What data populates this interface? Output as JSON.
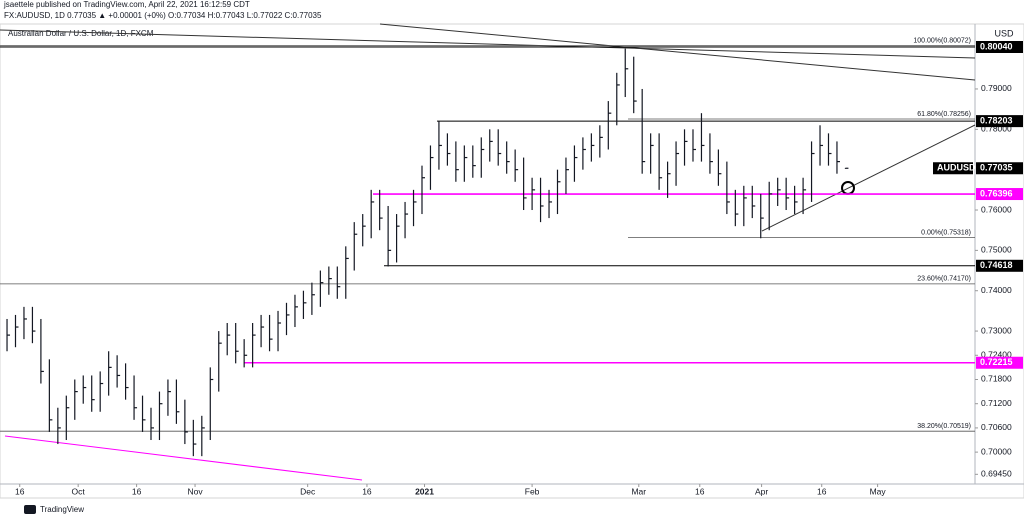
{
  "header": {
    "line1": "jsaettele published on TradingView.com, April 22, 2021 16:12:59 CDT",
    "line2": "FX:AUDUSD, 1D 0.77035 ▲ +0.00001 (+0%) O:0.77034 H:0.77043 L:0.77022 C:0.77035"
  },
  "footer": {
    "brand": "TradingView"
  },
  "chart_data": {
    "type": "hlc",
    "title": "Australian Dollar / U.S. Dollar, 1D, FXCM",
    "currency": "USD",
    "color": "#131722",
    "xlim": [
      -0.83,
      114.3
    ],
    "ylim": [
      0.6921,
      0.8061
    ],
    "xticks": [
      {
        "value": 1.5,
        "label": "16"
      },
      {
        "value": 8.4,
        "label": "Oct"
      },
      {
        "value": 15.3,
        "label": "16"
      },
      {
        "value": 22.2,
        "label": "Nov"
      },
      {
        "value": 35.5,
        "label": "Dec"
      },
      {
        "value": 42.5,
        "label": "16"
      },
      {
        "value": 49.3,
        "label": "2021"
      },
      {
        "value": 62,
        "label": "Feb"
      },
      {
        "value": 74.6,
        "label": "Mar"
      },
      {
        "value": 81.8,
        "label": "16"
      },
      {
        "value": 89.1,
        "label": "Apr"
      },
      {
        "value": 96.2,
        "label": "16"
      },
      {
        "value": 102.8,
        "label": "May"
      }
    ],
    "yticks": [
      {
        "value": 0.6945,
        "label": "0.69450"
      },
      {
        "value": 0.7,
        "label": "0.70000"
      },
      {
        "value": 0.706,
        "label": "0.70600"
      },
      {
        "value": 0.712,
        "label": "0.71200"
      },
      {
        "value": 0.718,
        "label": "0.71800"
      },
      {
        "value": 0.724,
        "label": "0.72400"
      },
      {
        "value": 0.73,
        "label": "0.73000"
      },
      {
        "value": 0.74,
        "label": "0.74000"
      },
      {
        "value": 0.75,
        "label": "0.75000"
      },
      {
        "value": 0.76,
        "label": "0.76000"
      },
      {
        "value": 0.78,
        "label": "0.78000"
      },
      {
        "value": 0.79,
        "label": "0.79000"
      }
    ],
    "high": [
      0.733,
      0.734,
      0.736,
      0.736,
      0.733,
      0.723,
      0.711,
      0.714,
      0.718,
      0.719,
      0.719,
      0.72,
      0.725,
      0.724,
      0.722,
      0.719,
      0.714,
      0.711,
      0.715,
      0.718,
      0.718,
      0.713,
      0.708,
      0.709,
      0.721,
      0.73,
      0.732,
      0.732,
      0.728,
      0.732,
      0.734,
      0.734,
      0.735,
      0.737,
      0.739,
      0.74,
      0.742,
      0.745,
      0.746,
      0.746,
      0.751,
      0.757,
      0.759,
      0.765,
      0.765,
      0.761,
      0.759,
      0.762,
      0.765,
      0.771,
      0.776,
      0.782,
      0.779,
      0.777,
      0.776,
      0.776,
      0.778,
      0.78,
      0.78,
      0.777,
      0.775,
      0.773,
      0.768,
      0.768,
      0.765,
      0.77,
      0.773,
      0.776,
      0.778,
      0.779,
      0.781,
      0.787,
      0.794,
      0.8,
      0.798,
      0.79,
      0.779,
      0.779,
      0.772,
      0.777,
      0.78,
      0.78,
      0.784,
      0.779,
      0.775,
      0.772,
      0.765,
      0.766,
      0.766,
      0.764,
      0.767,
      0.768,
      0.768,
      0.766,
      0.768,
      0.777,
      0.781,
      0.779,
      0.777,
      0.77043
    ],
    "low": [
      0.725,
      0.726,
      0.728,
      0.727,
      0.717,
      0.705,
      0.702,
      0.703,
      0.708,
      0.712,
      0.71,
      0.71,
      0.714,
      0.716,
      0.713,
      0.708,
      0.705,
      0.703,
      0.703,
      0.709,
      0.707,
      0.702,
      0.699,
      0.699,
      0.703,
      0.715,
      0.724,
      0.722,
      0.721,
      0.721,
      0.726,
      0.725,
      0.725,
      0.729,
      0.731,
      0.733,
      0.734,
      0.736,
      0.739,
      0.738,
      0.738,
      0.745,
      0.751,
      0.753,
      0.755,
      0.746,
      0.747,
      0.753,
      0.756,
      0.759,
      0.765,
      0.77,
      0.771,
      0.767,
      0.767,
      0.768,
      0.768,
      0.772,
      0.771,
      0.769,
      0.767,
      0.76,
      0.76,
      0.757,
      0.758,
      0.759,
      0.764,
      0.767,
      0.77,
      0.772,
      0.773,
      0.775,
      0.781,
      0.788,
      0.784,
      0.769,
      0.769,
      0.765,
      0.763,
      0.766,
      0.771,
      0.772,
      0.772,
      0.769,
      0.766,
      0.759,
      0.756,
      0.756,
      0.758,
      0.753,
      0.755,
      0.761,
      0.76,
      0.759,
      0.759,
      0.762,
      0.771,
      0.771,
      0.769,
      0.77022
    ],
    "close": [
      0.729,
      0.731,
      0.733,
      0.73,
      0.72,
      0.708,
      0.706,
      0.711,
      0.715,
      0.716,
      0.713,
      0.717,
      0.721,
      0.719,
      0.716,
      0.711,
      0.708,
      0.706,
      0.712,
      0.715,
      0.71,
      0.705,
      0.702,
      0.706,
      0.718,
      0.727,
      0.729,
      0.725,
      0.724,
      0.729,
      0.731,
      0.728,
      0.732,
      0.734,
      0.736,
      0.737,
      0.739,
      0.742,
      0.743,
      0.741,
      0.748,
      0.754,
      0.756,
      0.762,
      0.758,
      0.75,
      0.756,
      0.759,
      0.762,
      0.768,
      0.773,
      0.776,
      0.774,
      0.77,
      0.773,
      0.771,
      0.775,
      0.777,
      0.774,
      0.772,
      0.77,
      0.763,
      0.765,
      0.761,
      0.762,
      0.767,
      0.77,
      0.773,
      0.775,
      0.776,
      0.778,
      0.784,
      0.791,
      0.795,
      0.787,
      0.772,
      0.776,
      0.768,
      0.769,
      0.774,
      0.777,
      0.775,
      0.776,
      0.772,
      0.769,
      0.762,
      0.759,
      0.763,
      0.761,
      0.758,
      0.764,
      0.765,
      0.763,
      0.762,
      0.765,
      0.774,
      0.776,
      0.774,
      0.772,
      0.77035
    ],
    "levels": [
      {
        "value": 0.8004,
        "label": "0.80040",
        "color": "#000000"
      },
      {
        "value": 0.78203,
        "label": "0.78203",
        "color": "#000000"
      },
      {
        "value": 0.76396,
        "label": "0.76396",
        "color": "#ff00ff"
      },
      {
        "value": 0.74618,
        "label": "0.74618",
        "color": "#000000"
      },
      {
        "value": 0.72215,
        "label": "0.72215",
        "color": "#ff00ff"
      }
    ],
    "last_price": {
      "name": "AUDUSD",
      "value": 0.77035,
      "label": "0.77035"
    },
    "fib_levels": [
      {
        "value": 0.80072,
        "label": "100.00%(0.80072)"
      },
      {
        "value": 0.78256,
        "label": "61.80%(0.78256)"
      },
      {
        "value": 0.75318,
        "label": "0.00%(0.75318)"
      },
      {
        "value": 0.7417,
        "label": "23.60%(0.74170)"
      },
      {
        "value": 0.70519,
        "label": "38.20%(0.70519)"
      }
    ]
  }
}
